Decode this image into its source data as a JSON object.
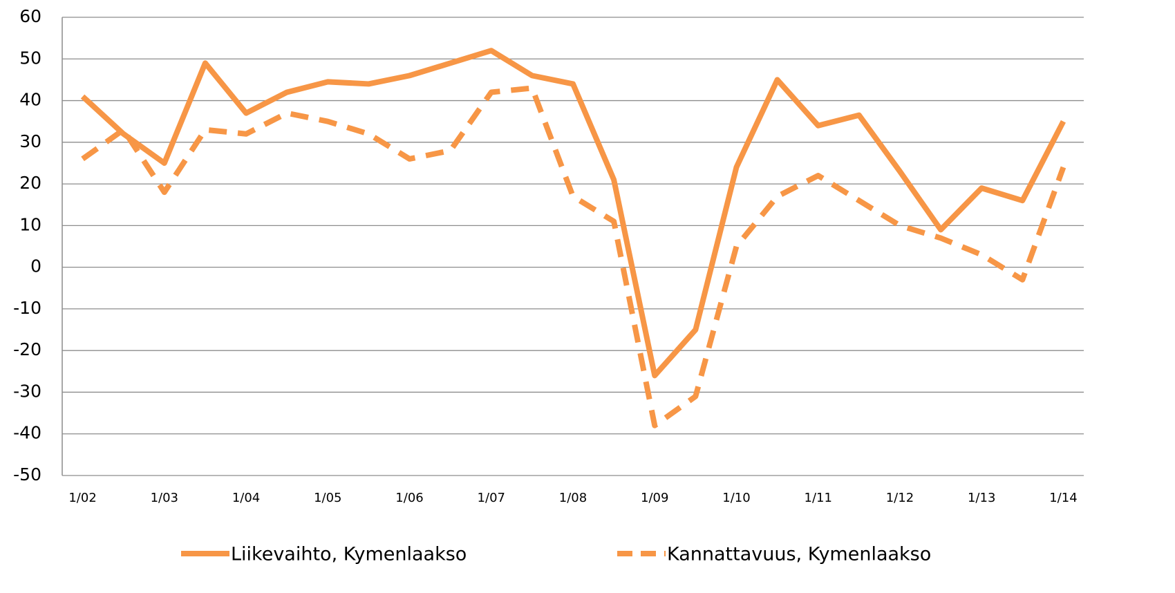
{
  "chart_data": {
    "type": "line",
    "categories": [
      "1/02",
      null,
      "1/03",
      null,
      "1/04",
      null,
      "1/05",
      null,
      "1/06",
      null,
      "1/07",
      null,
      "1/08",
      null,
      "1/09",
      null,
      "1/10",
      null,
      "1/11",
      null,
      "1/12",
      null,
      "1/13",
      null,
      "1/14"
    ],
    "series": [
      {
        "name": "Liikevaihto, Kymenlaakso",
        "color": "#f79646",
        "dash": false,
        "values": [
          41,
          32,
          25,
          49,
          37,
          42,
          44.5,
          44,
          46,
          49,
          52,
          46,
          44,
          21,
          -26,
          -15,
          24,
          45,
          34,
          36.5,
          23,
          9,
          19,
          16,
          35
        ]
      },
      {
        "name": "Kannattavuus, Kymenlaakso",
        "color": "#f79646",
        "dash": true,
        "values": [
          26,
          33,
          18,
          33,
          32,
          37,
          35,
          32,
          26,
          28,
          42,
          43,
          17,
          11,
          -38,
          -31,
          5,
          17,
          22,
          16,
          10,
          7,
          3,
          -3,
          24
        ]
      }
    ],
    "ylim": [
      -50,
      60
    ],
    "yticks": [
      -50,
      -40,
      -30,
      -20,
      -10,
      0,
      10,
      20,
      30,
      40,
      50,
      60
    ],
    "grid": true,
    "legend": "bottom"
  }
}
